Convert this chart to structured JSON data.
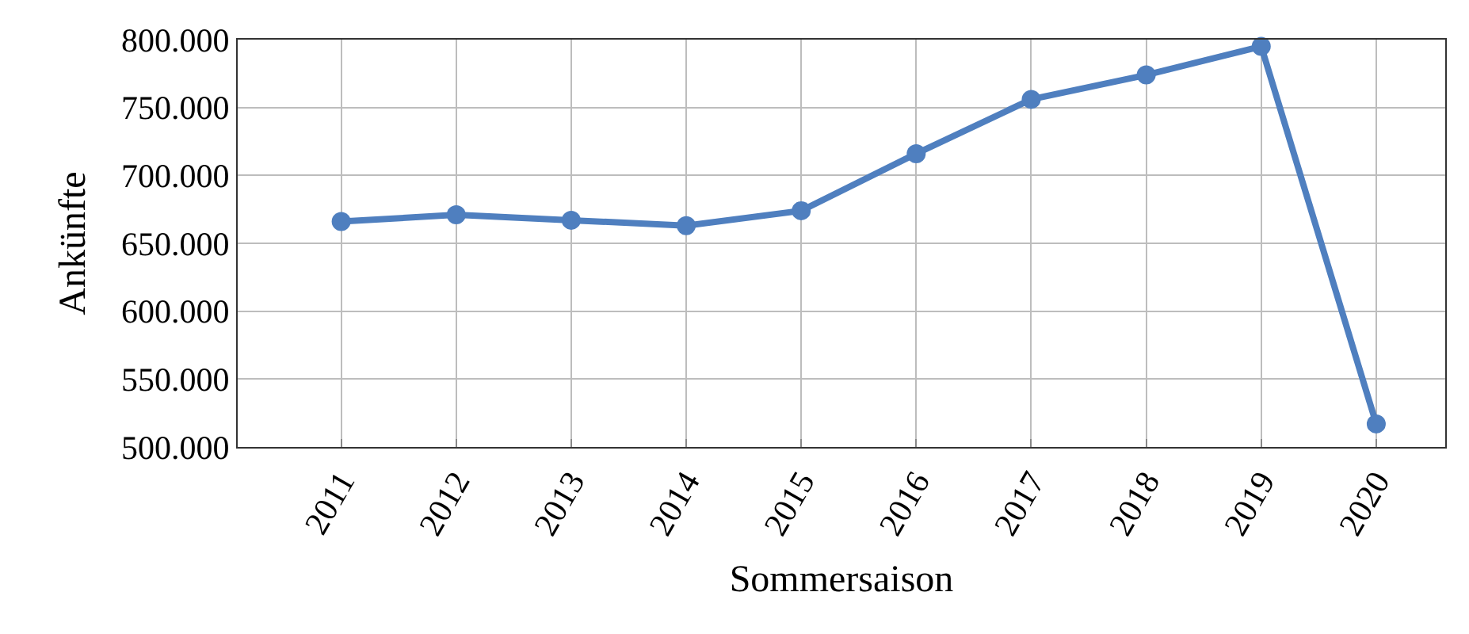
{
  "chart_data": {
    "type": "line",
    "xlabel": "Sommersaison",
    "ylabel": "Ankünfte",
    "categories": [
      "2011",
      "2012",
      "2013",
      "2014",
      "2015",
      "2016",
      "2017",
      "2018",
      "2019",
      "2020"
    ],
    "series": [
      {
        "color": "#4f7fbf",
        "values": [
          666000,
          671000,
          667000,
          663000,
          674000,
          716000,
          756000,
          774000,
          795000,
          517000
        ]
      }
    ],
    "ylim": [
      500000,
      800000
    ],
    "yticks": [
      {
        "value": 500000,
        "label": "500.000"
      },
      {
        "value": 550000,
        "label": "550.000"
      },
      {
        "value": 600000,
        "label": "600.000"
      },
      {
        "value": 650000,
        "label": "650.000"
      },
      {
        "value": 700000,
        "label": "700.000"
      },
      {
        "value": 750000,
        "label": "750.000"
      },
      {
        "value": 800000,
        "label": "800.000"
      }
    ],
    "grid": true,
    "marker": "circle",
    "line_style": "solid"
  }
}
